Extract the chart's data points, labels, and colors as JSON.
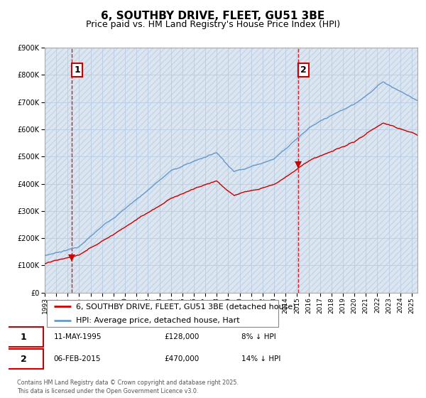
{
  "title": "6, SOUTHBY DRIVE, FLEET, GU51 3BE",
  "subtitle": "Price paid vs. HM Land Registry's House Price Index (HPI)",
  "legend_entry1": "6, SOUTHBY DRIVE, FLEET, GU51 3BE (detached house)",
  "legend_entry2": "HPI: Average price, detached house, Hart",
  "annotation1_label": "1",
  "annotation1_date": "11-MAY-1995",
  "annotation1_price": 128000,
  "annotation1_note": "8% ↓ HPI",
  "annotation2_label": "2",
  "annotation2_date": "06-FEB-2015",
  "annotation2_price": 470000,
  "annotation2_note": "14% ↓ HPI",
  "sale1_year": 1995.36,
  "sale2_year": 2015.09,
  "line_color_red": "#cc0000",
  "line_color_blue": "#6699cc",
  "vline_color": "#cc0000",
  "bg_color": "#dce6f0",
  "grid_color": "#b8cce4",
  "hatch_color": "#c5d5e8",
  "ylim_min": 0,
  "ylim_max": 900000,
  "xmin": 1993,
  "xmax": 2025.5,
  "footer": "Contains HM Land Registry data © Crown copyright and database right 2025.\nThis data is licensed under the Open Government Licence v3.0.",
  "annotation_box_color": "#cc0000",
  "title_fontsize": 11,
  "subtitle_fontsize": 9,
  "tick_fontsize": 7,
  "legend_fontsize": 8,
  "annotation_fontsize": 7.5
}
